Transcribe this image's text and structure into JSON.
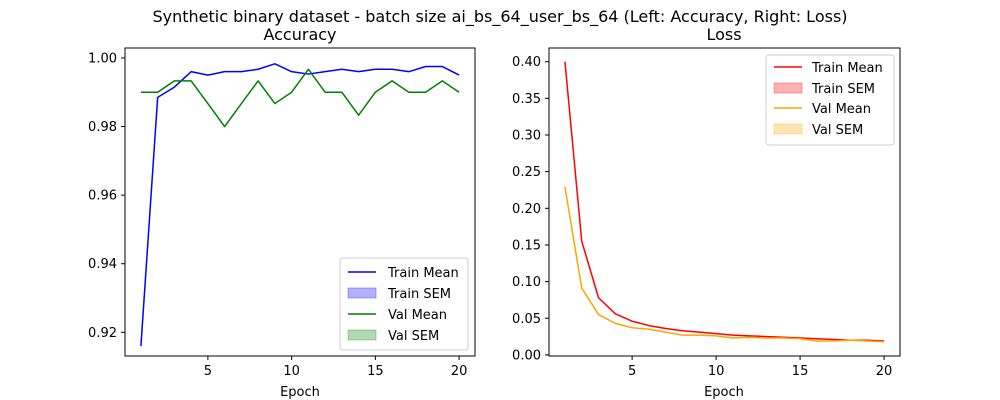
{
  "figure": {
    "title": "Synthetic binary dataset - batch size ai_bs_64_user_bs_64 (Left: Accuracy, Right: Loss)"
  },
  "colors": {
    "train_acc": "#0000ff",
    "val_acc": "#008000",
    "train_loss": "#ff0000",
    "val_loss": "#ffa500"
  },
  "chart_data": [
    {
      "type": "line",
      "title": "Accuracy",
      "xlabel": "Epoch",
      "ylabel": "",
      "xlim": [
        0.05,
        20.95
      ],
      "ylim": [
        0.9131,
        1.0029
      ],
      "xticks": [
        5,
        10,
        15,
        20
      ],
      "yticks": [
        0.92,
        0.94,
        0.96,
        0.98,
        1.0
      ],
      "ytick_labels": [
        "0.92",
        "0.94",
        "0.96",
        "0.98",
        "1.00"
      ],
      "grid": false,
      "legend_position": "lower right",
      "legend": [
        "Train Mean",
        "Train SEM",
        "Val Mean",
        "Val SEM"
      ],
      "x": [
        1,
        2,
        3,
        4,
        5,
        6,
        7,
        8,
        9,
        10,
        11,
        12,
        13,
        14,
        15,
        16,
        17,
        18,
        19,
        20
      ],
      "series": [
        {
          "name": "Train Mean",
          "color": "#0000ff",
          "values": [
            0.916,
            0.9885,
            0.9915,
            0.996,
            0.995,
            0.996,
            0.996,
            0.9967,
            0.9983,
            0.996,
            0.9953,
            0.996,
            0.9967,
            0.996,
            0.9967,
            0.9967,
            0.996,
            0.9975,
            0.9975,
            0.995
          ]
        },
        {
          "name": "Val Mean",
          "color": "#008000",
          "values": [
            0.99,
            0.99,
            0.9933,
            0.9933,
            0.9867,
            0.98,
            0.9867,
            0.9933,
            0.9867,
            0.99,
            0.9967,
            0.99,
            0.99,
            0.9833,
            0.99,
            0.9933,
            0.99,
            0.99,
            0.9933,
            0.99
          ]
        }
      ]
    },
    {
      "type": "line",
      "title": "Loss",
      "xlabel": "Epoch",
      "ylabel": "",
      "xlim": [
        0.05,
        20.95
      ],
      "ylim": [
        -0.0015,
        0.4187
      ],
      "xticks": [
        5,
        10,
        15,
        20
      ],
      "yticks": [
        0.0,
        0.05,
        0.1,
        0.15,
        0.2,
        0.25,
        0.3,
        0.35,
        0.4
      ],
      "ytick_labels": [
        "0.00",
        "0.05",
        "0.10",
        "0.15",
        "0.20",
        "0.25",
        "0.30",
        "0.35",
        "0.40"
      ],
      "grid": false,
      "legend_position": "upper right",
      "legend": [
        "Train Mean",
        "Train SEM",
        "Val Mean",
        "Val SEM"
      ],
      "x": [
        1,
        2,
        3,
        4,
        5,
        6,
        7,
        8,
        9,
        10,
        11,
        12,
        13,
        14,
        15,
        16,
        17,
        18,
        19,
        20
      ],
      "series": [
        {
          "name": "Train Mean",
          "color": "#ff0000",
          "values": [
            0.4,
            0.155,
            0.078,
            0.056,
            0.046,
            0.04,
            0.036,
            0.033,
            0.031,
            0.029,
            0.027,
            0.026,
            0.025,
            0.024,
            0.023,
            0.022,
            0.021,
            0.02,
            0.02,
            0.019
          ]
        },
        {
          "name": "Val Mean",
          "color": "#ffa500",
          "values": [
            0.229,
            0.091,
            0.055,
            0.043,
            0.037,
            0.035,
            0.031,
            0.027,
            0.027,
            0.026,
            0.023,
            0.024,
            0.023,
            0.023,
            0.022,
            0.019,
            0.019,
            0.02,
            0.019,
            0.018
          ]
        }
      ]
    }
  ]
}
